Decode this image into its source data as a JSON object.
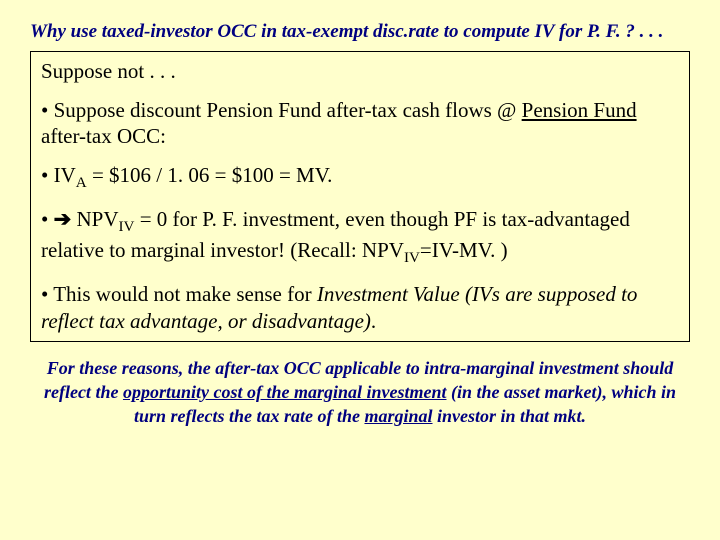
{
  "title": "Why use taxed-investor OCC in tax-exempt disc.rate to compute IV for P. F. ? . . .",
  "box": {
    "p1": "Suppose not . . .",
    "p2a": "• Suppose discount Pension Fund after-tax cash flows @ ",
    "p2b": "Pension Fund",
    "p2c": " after-tax OCC:",
    "p3a": "• IV",
    "p3sub": "A",
    "p3b": " = $106 / 1. 06 = $100 = MV.",
    "p4a": "• ",
    "p4arrow": "➔",
    "p4b": " NPV",
    "p4sub1": "IV",
    "p4c": " = 0 for P. F. investment, even though PF is tax-advantaged relative to marginal investor! (Recall: NPV",
    "p4sub2": "IV",
    "p4d": "=IV-MV. )",
    "p5a": "• This would not make sense for ",
    "p5b": "Investment Value (IVs are supposed to reflect tax advantage, or disadvantage)",
    "p5c": "."
  },
  "footer": {
    "a": "For these reasons, the after-tax OCC applicable to intra-marginal investment should reflect the ",
    "b": "opportunity cost of the marginal investment",
    "c": " (in the asset market), which in turn reflects the tax rate of the ",
    "d": "marginal",
    "e": " investor in that mkt."
  }
}
